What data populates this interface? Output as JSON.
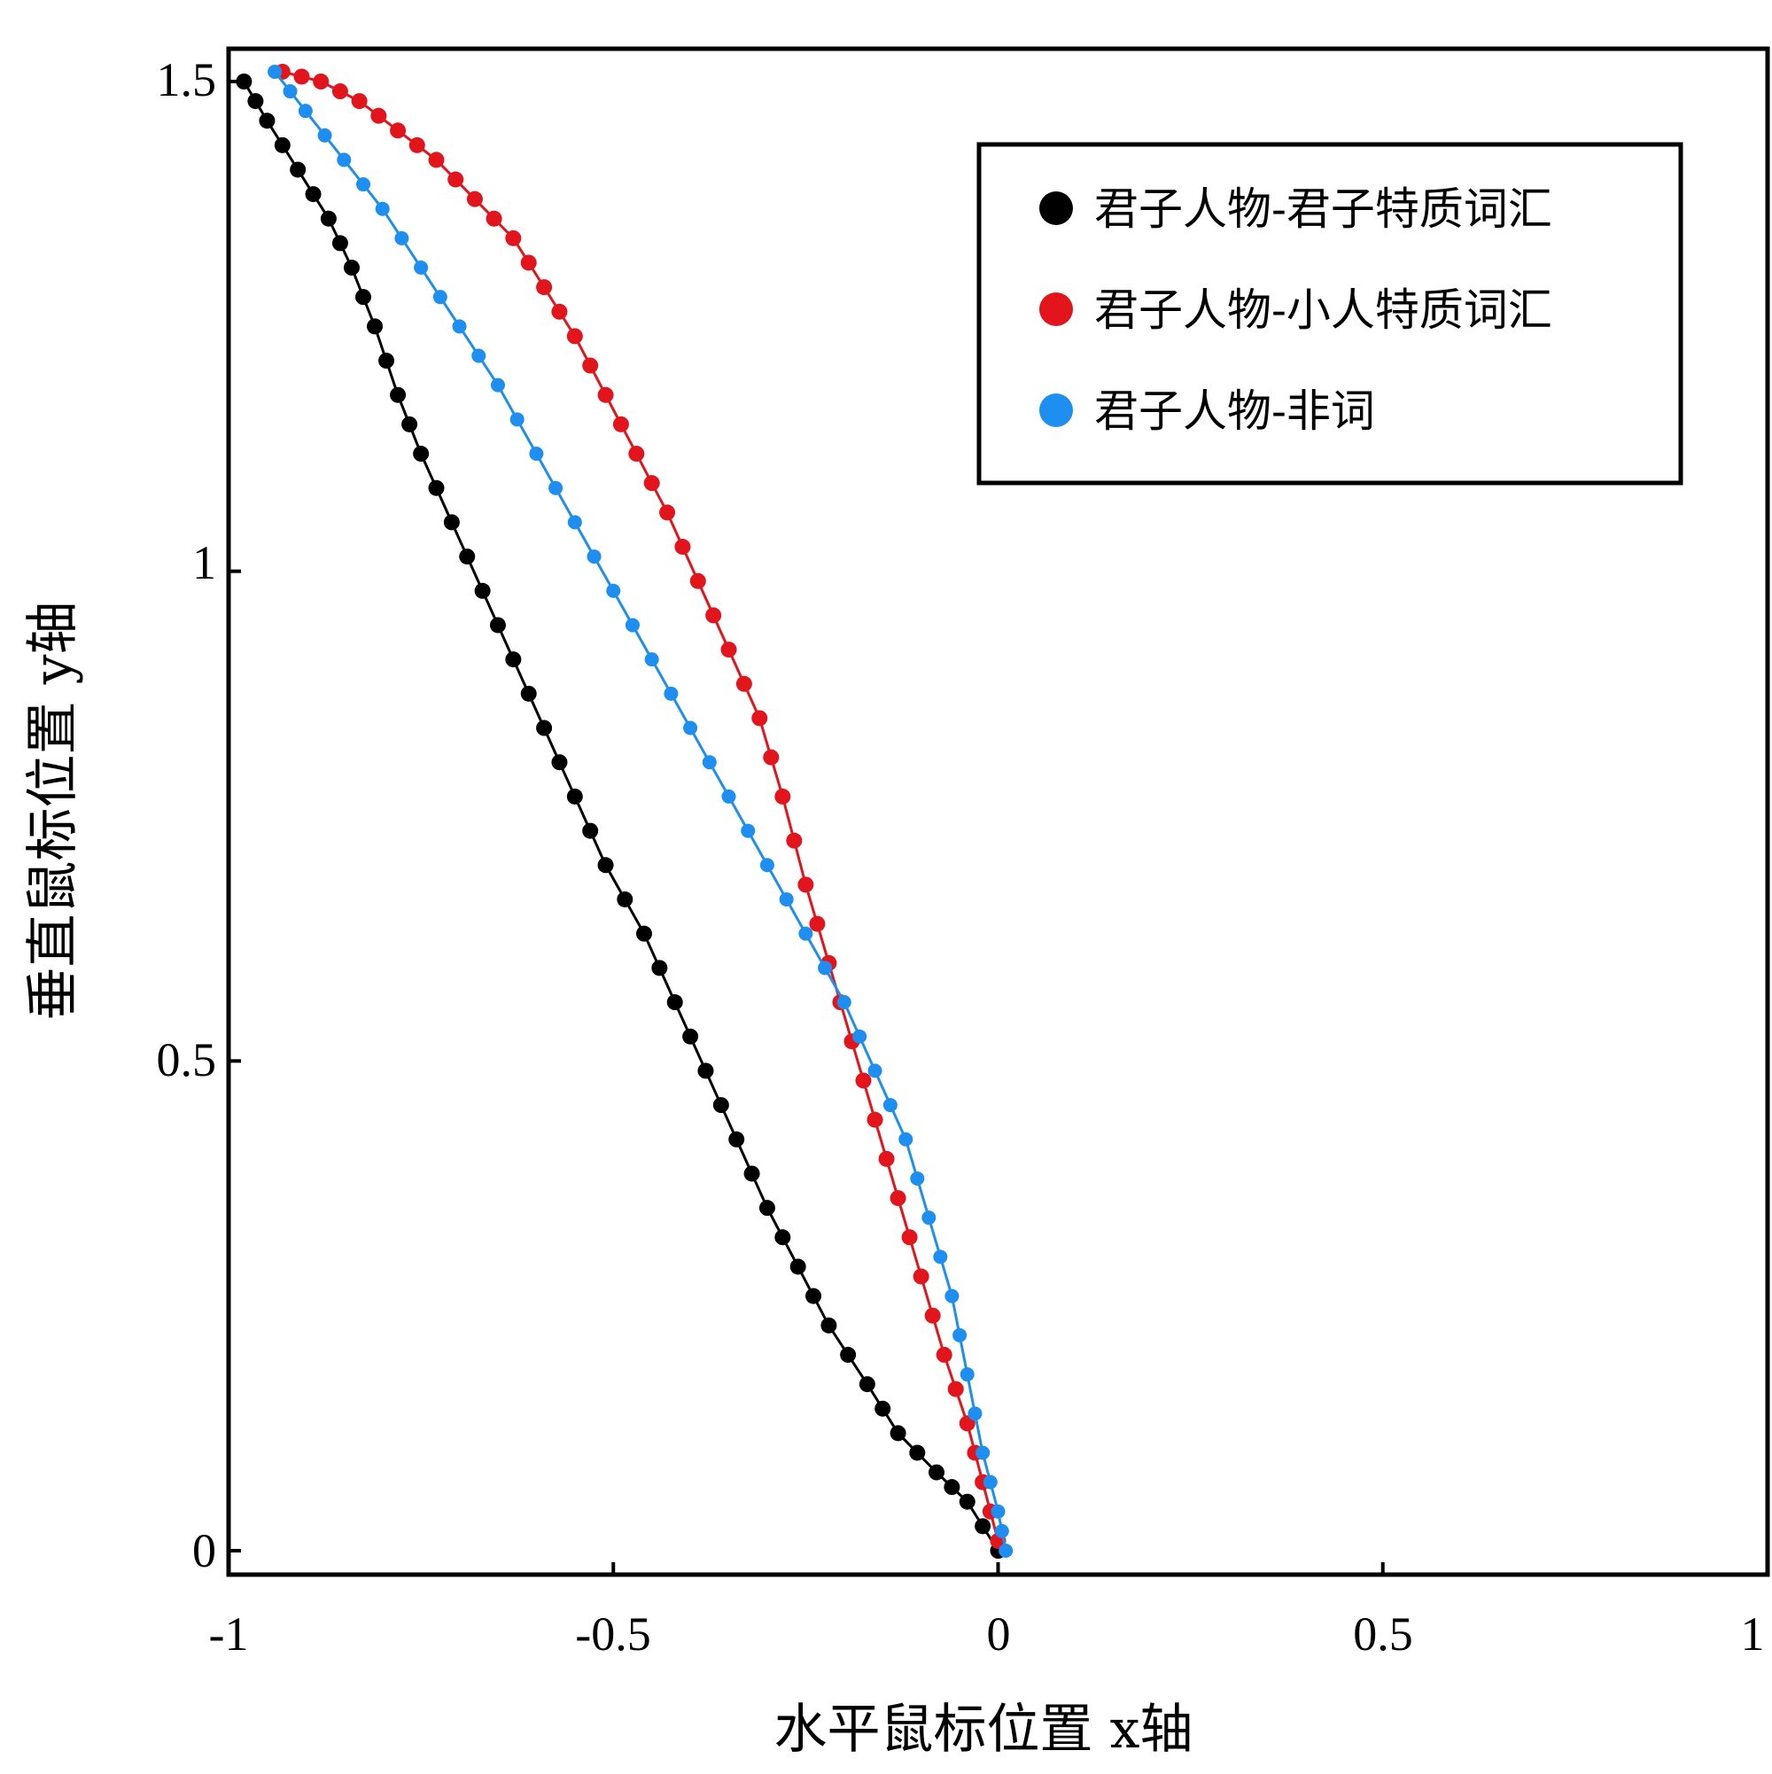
{
  "chart_data": {
    "type": "line",
    "title": "",
    "xlabel": "水平鼠标位置 x轴",
    "ylabel": "垂直鼠标位置 y轴",
    "xlim": [
      -1,
      1
    ],
    "ylim": [
      0,
      1.5
    ],
    "xticks": [
      -1,
      -0.5,
      0,
      0.5,
      1
    ],
    "xtick_labels": [
      "-1",
      "-0.5",
      "0",
      "0.5",
      "1"
    ],
    "yticks": [
      0,
      0.5,
      1,
      1.5
    ],
    "ytick_labels": [
      "0",
      "0.5",
      "1",
      "1.5"
    ],
    "grid": false,
    "legend_position": "top-right",
    "series": [
      {
        "name": "君子人物-君子特质词汇",
        "color": "#000000",
        "points": [
          [
            -0.98,
            1.5
          ],
          [
            -0.95,
            1.46
          ],
          [
            -0.91,
            1.41
          ],
          [
            -0.87,
            1.36
          ],
          [
            -0.84,
            1.31
          ],
          [
            -0.81,
            1.25
          ],
          [
            -0.78,
            1.18
          ],
          [
            -0.75,
            1.12
          ],
          [
            -0.71,
            1.05
          ],
          [
            -0.67,
            0.98
          ],
          [
            -0.63,
            0.91
          ],
          [
            -0.59,
            0.84
          ],
          [
            -0.55,
            0.77
          ],
          [
            -0.51,
            0.7
          ],
          [
            -0.46,
            0.63
          ],
          [
            -0.42,
            0.56
          ],
          [
            -0.38,
            0.49
          ],
          [
            -0.34,
            0.42
          ],
          [
            -0.3,
            0.35
          ],
          [
            -0.26,
            0.29
          ],
          [
            -0.22,
            0.23
          ],
          [
            -0.17,
            0.17
          ],
          [
            -0.13,
            0.12
          ],
          [
            -0.08,
            0.08
          ],
          [
            -0.04,
            0.05
          ],
          [
            0.0,
            0.0
          ]
        ]
      },
      {
        "name": "君子人物-小人特质词汇",
        "color": "#e3151c",
        "points": [
          [
            -0.93,
            1.51
          ],
          [
            -0.88,
            1.5
          ],
          [
            -0.83,
            1.48
          ],
          [
            -0.78,
            1.45
          ],
          [
            -0.73,
            1.42
          ],
          [
            -0.68,
            1.38
          ],
          [
            -0.63,
            1.34
          ],
          [
            -0.59,
            1.29
          ],
          [
            -0.55,
            1.24
          ],
          [
            -0.51,
            1.18
          ],
          [
            -0.47,
            1.12
          ],
          [
            -0.43,
            1.06
          ],
          [
            -0.39,
            0.99
          ],
          [
            -0.35,
            0.92
          ],
          [
            -0.31,
            0.85
          ],
          [
            -0.28,
            0.77
          ],
          [
            -0.25,
            0.68
          ],
          [
            -0.22,
            0.6
          ],
          [
            -0.19,
            0.52
          ],
          [
            -0.16,
            0.44
          ],
          [
            -0.13,
            0.36
          ],
          [
            -0.1,
            0.28
          ],
          [
            -0.07,
            0.2
          ],
          [
            -0.04,
            0.13
          ],
          [
            -0.02,
            0.07
          ],
          [
            0.0,
            0.01
          ]
        ]
      },
      {
        "name": "君子人物-非词",
        "color": "#1e8ff0",
        "points": [
          [
            -0.94,
            1.51
          ],
          [
            -0.9,
            1.47
          ],
          [
            -0.85,
            1.42
          ],
          [
            -0.8,
            1.37
          ],
          [
            -0.75,
            1.31
          ],
          [
            -0.7,
            1.25
          ],
          [
            -0.65,
            1.19
          ],
          [
            -0.6,
            1.12
          ],
          [
            -0.55,
            1.05
          ],
          [
            -0.5,
            0.98
          ],
          [
            -0.45,
            0.91
          ],
          [
            -0.4,
            0.84
          ],
          [
            -0.35,
            0.77
          ],
          [
            -0.3,
            0.7
          ],
          [
            -0.25,
            0.63
          ],
          [
            -0.2,
            0.56
          ],
          [
            -0.16,
            0.49
          ],
          [
            -0.12,
            0.42
          ],
          [
            -0.09,
            0.34
          ],
          [
            -0.06,
            0.26
          ],
          [
            -0.04,
            0.18
          ],
          [
            -0.02,
            0.1
          ],
          [
            0.0,
            0.04
          ],
          [
            0.01,
            0.0
          ]
        ]
      }
    ]
  }
}
